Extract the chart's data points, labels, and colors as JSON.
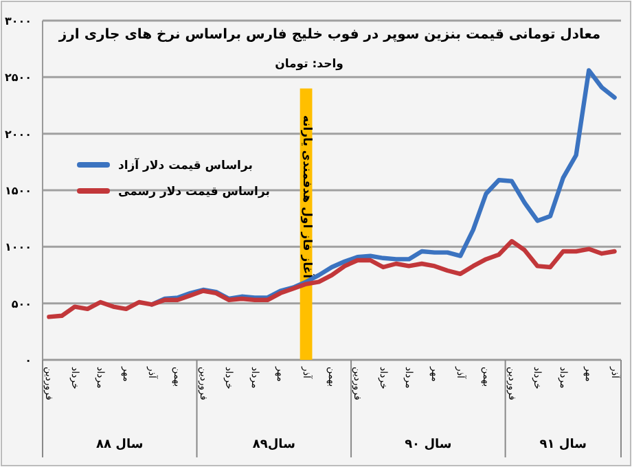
{
  "chart_data": {
    "type": "line",
    "title": "معادل تومانی قیمت بنزین سوپر در فوب خلیج فارس براساس نرخ های جاری ارز",
    "subtitle": "واحد: تومان",
    "categories": [
      "فروردین",
      null,
      "خرداد",
      null,
      "مرداد",
      null,
      "مهر",
      null,
      "آذر",
      null,
      "بهمن",
      null,
      "فروردین",
      null,
      "خرداد",
      null,
      "مرداد",
      null,
      "مهر",
      null,
      "آذر",
      null,
      "بهمن",
      null,
      "فروردین",
      null,
      "خرداد",
      null,
      "مرداد",
      null,
      "مهر",
      null,
      "آذر",
      null,
      "بهمن",
      null,
      "فروردین",
      null,
      "خرداد",
      null,
      "مرداد",
      null,
      "مهر",
      null,
      "آذر"
    ],
    "series": [
      {
        "type": "bar",
        "color": "#ffbf00",
        "values": [
          null,
          null,
          null,
          null,
          null,
          null,
          null,
          null,
          null,
          null,
          null,
          null,
          null,
          null,
          null,
          null,
          null,
          null,
          null,
          null,
          2400,
          null,
          null,
          null,
          null,
          null,
          null,
          null,
          null,
          null,
          null,
          null,
          null,
          null,
          null,
          null,
          null,
          null,
          null,
          null,
          null,
          null,
          null,
          null,
          null
        ]
      },
      {
        "name": "براساس قیمت دلار آزاد",
        "color": "#3b73c0",
        "values": [
          null,
          null,
          null,
          null,
          null,
          null,
          null,
          null,
          490,
          540,
          550,
          590,
          620,
          600,
          540,
          560,
          550,
          550,
          610,
          640,
          690,
          750,
          820,
          870,
          910,
          920,
          900,
          890,
          890,
          960,
          950,
          950,
          920,
          1150,
          1470,
          1590,
          1580,
          1390,
          1230,
          1270,
          1610,
          1810,
          2560,
          2410,
          2320
        ]
      },
      {
        "name": "براساس قیمت دلار رسمی",
        "color": "#c2373a",
        "values": [
          380,
          390,
          470,
          450,
          510,
          470,
          450,
          510,
          490,
          530,
          530,
          570,
          610,
          590,
          530,
          540,
          530,
          530,
          590,
          630,
          670,
          690,
          750,
          830,
          880,
          880,
          820,
          850,
          830,
          850,
          830,
          790,
          760,
          830,
          890,
          930,
          1050,
          970,
          830,
          820,
          960,
          960,
          980,
          940,
          960
        ]
      }
    ],
    "ylim": [
      0,
      3000
    ],
    "yticks": [
      {
        "value": 0,
        "label": "۰"
      },
      {
        "value": 500,
        "label": "۵۰۰"
      },
      {
        "value": 1000,
        "label": "۱۰۰۰"
      },
      {
        "value": 1500,
        "label": "۱۵۰۰"
      },
      {
        "value": 2000,
        "label": "۲۰۰۰"
      },
      {
        "value": 2500,
        "label": "۲۵۰۰"
      },
      {
        "value": 3000,
        "label": "۳۰۰۰"
      }
    ],
    "annotations": [
      "سال ۸۸",
      "سال۸۹",
      "سال ۹۰",
      "سال ۹۱",
      "آغاز فاز اول هدفمندی یارانه"
    ],
    "grid": "y",
    "legend": "left",
    "marker": "none",
    "line_style": "solid"
  }
}
